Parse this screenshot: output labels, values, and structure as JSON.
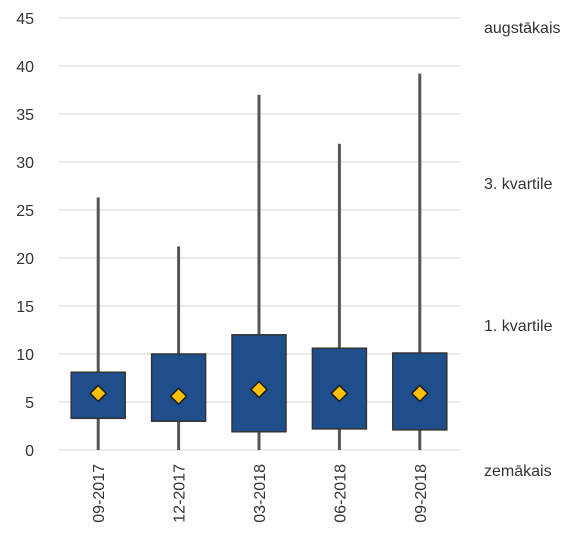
{
  "chart_data": {
    "type": "boxplot",
    "categories": [
      "09-2017",
      "12-2017",
      "03-2018",
      "06-2018",
      "09-2018"
    ],
    "series": [
      {
        "min": 0,
        "q1": 3.3,
        "mean": 5.9,
        "q3": 8.1,
        "max": 26.3
      },
      {
        "min": 0,
        "q1": 3.0,
        "mean": 5.6,
        "q3": 10.0,
        "max": 21.2
      },
      {
        "min": 0,
        "q1": 1.9,
        "mean": 6.3,
        "q3": 12.0,
        "max": 37.0
      },
      {
        "min": 0,
        "q1": 2.2,
        "mean": 5.9,
        "q3": 10.6,
        "max": 31.9
      },
      {
        "min": 0,
        "q1": 2.1,
        "mean": 5.9,
        "q3": 10.1,
        "max": 39.2
      }
    ],
    "y_ticks": [
      "0",
      "5",
      "10",
      "15",
      "20",
      "25",
      "30",
      "35",
      "40",
      "45"
    ],
    "ylim": [
      0,
      45
    ],
    "grid": true,
    "legend": {
      "highest": "augstākais",
      "q3": "3. kvartile",
      "q1": "1. kvartile",
      "lowest": "zemākais"
    },
    "colors": {
      "box": "#1f4e8c",
      "box_border": "#333333",
      "whisker": "#555555",
      "mean_marker": "#ffc000",
      "grid": "#d9d9d9",
      "text": "#333333"
    }
  }
}
